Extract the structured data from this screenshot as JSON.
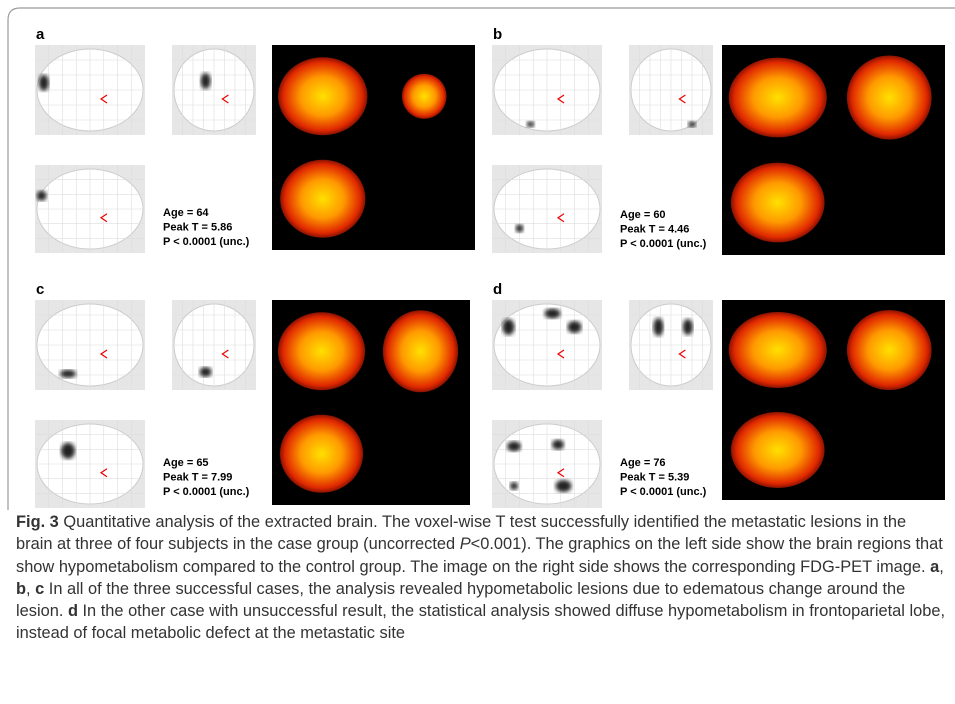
{
  "panels": [
    {
      "label": "a",
      "stats": [
        "Age = 64",
        "Peak T = 5.86",
        "P < 0.0001 (unc.)"
      ]
    },
    {
      "label": "b",
      "stats": [
        "Age = 60",
        "Peak T = 4.46",
        "P < 0.0001 (unc.)"
      ]
    },
    {
      "label": "c",
      "stats": [
        "Age = 65",
        "Peak T = 7.99",
        "P < 0.0001 (unc.)"
      ]
    },
    {
      "label": "d",
      "stats": [
        "Age = 76",
        "Peak T = 5.39",
        "P < 0.0001 (unc.)"
      ]
    }
  ],
  "caption": {
    "parts": [
      "Fig. 3",
      " Quantitative analysis of the extracted brain. The voxel-wise T test successfully identified the metastatic lesions in the brain at three of four subjects in the case group (uncorrected ",
      "P",
      "<0.001). The graphics on the left side show the brain regions that show hypometabolism compared to the control group. The image on the right side shows the corresponding FDG-PET image. ",
      "a",
      ", ",
      "b",
      ", ",
      "c",
      " In all of the three successful cases, the analysis revealed hypometabolic lesions due to edematous change around the lesion. ",
      "d",
      " In the other case with unsuccessful result, the statistical analysis showed diffuse hypometabolism in frontoparietal lobe, instead of focal metabolic defect at the metastatic site"
    ]
  }
}
